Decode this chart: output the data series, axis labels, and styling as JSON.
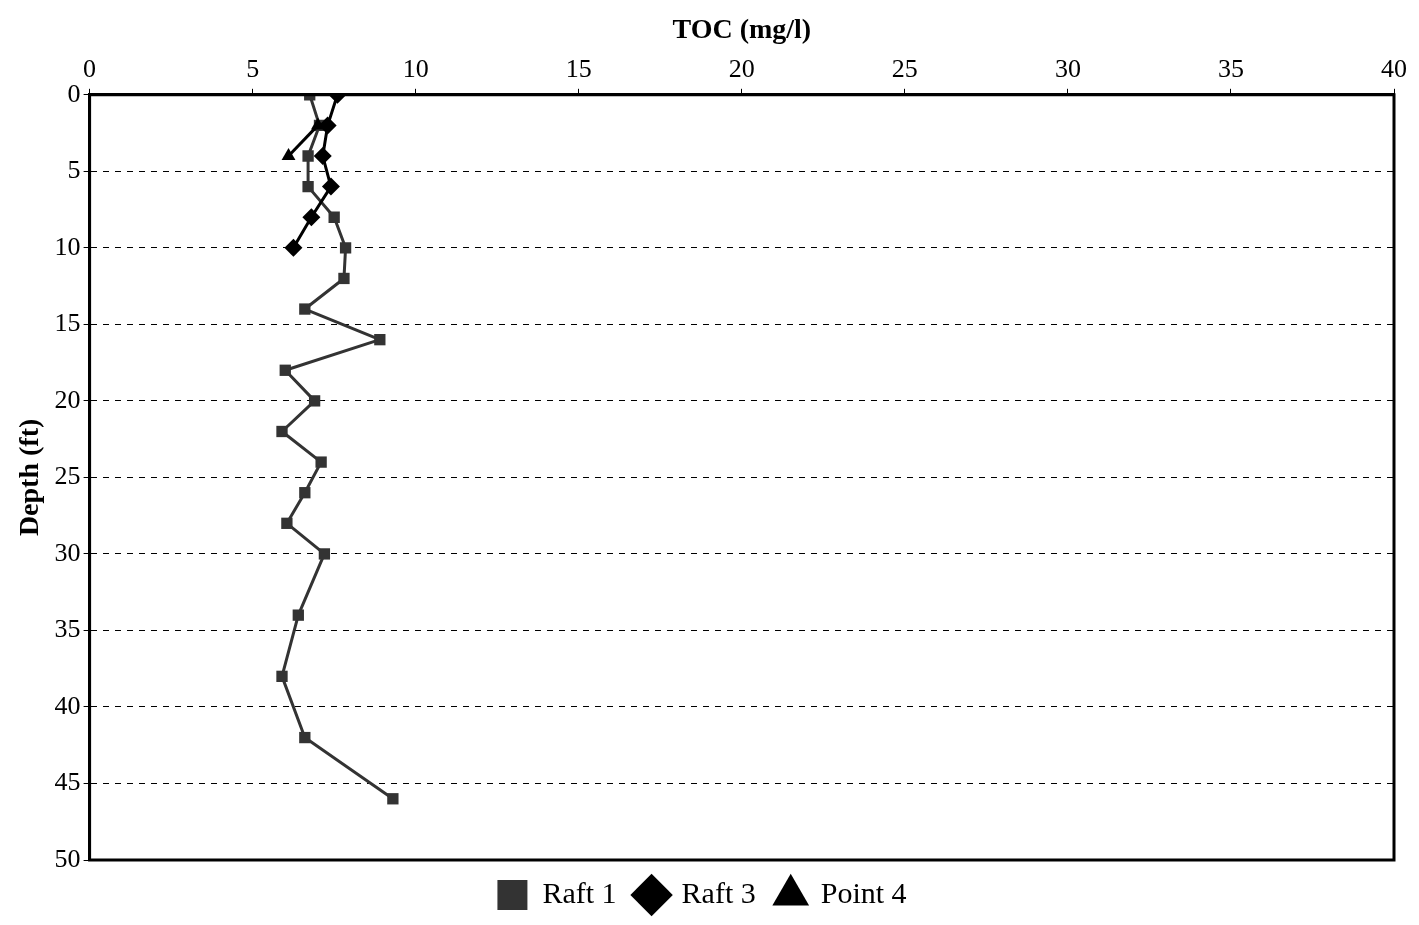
{
  "chart_data": {
    "type": "line",
    "xlabel": "TOC (mg/l)",
    "ylabel": "Depth (ft)",
    "xlim": [
      0,
      40
    ],
    "xticks": [
      0,
      5,
      10,
      15,
      20,
      25,
      30,
      35,
      40
    ],
    "ylim": [
      50,
      0
    ],
    "yticks": [
      0,
      5,
      10,
      15,
      20,
      25,
      30,
      35,
      40,
      45,
      50
    ],
    "grid": "y",
    "legend": "bottom",
    "line_style": "solid",
    "series": [
      {
        "name": "Raft 1",
        "color": "#333333",
        "marker": "square",
        "x": [
          6.75,
          7.05,
          6.7,
          6.7,
          7.5,
          7.85,
          7.8,
          6.6,
          8.9,
          6.0,
          6.9,
          5.9,
          7.1,
          6.6,
          6.05,
          7.2,
          6.4,
          5.9,
          6.6,
          9.3
        ],
        "values": [
          0,
          2,
          4,
          6,
          8,
          10,
          12,
          14,
          16,
          18,
          20,
          22,
          24,
          26,
          28,
          30,
          34,
          38,
          42,
          46
        ]
      },
      {
        "name": "Raft 3",
        "color": "#000000",
        "marker": "diamond",
        "x": [
          7.6,
          7.3,
          7.15,
          7.4,
          6.8,
          6.25
        ],
        "values": [
          0,
          2,
          4,
          6,
          8,
          10
        ]
      },
      {
        "name": "Point 4",
        "color": "#000000",
        "marker": "triangle",
        "x": [
          7.0,
          6.1
        ],
        "values": [
          2,
          4
        ]
      }
    ]
  }
}
